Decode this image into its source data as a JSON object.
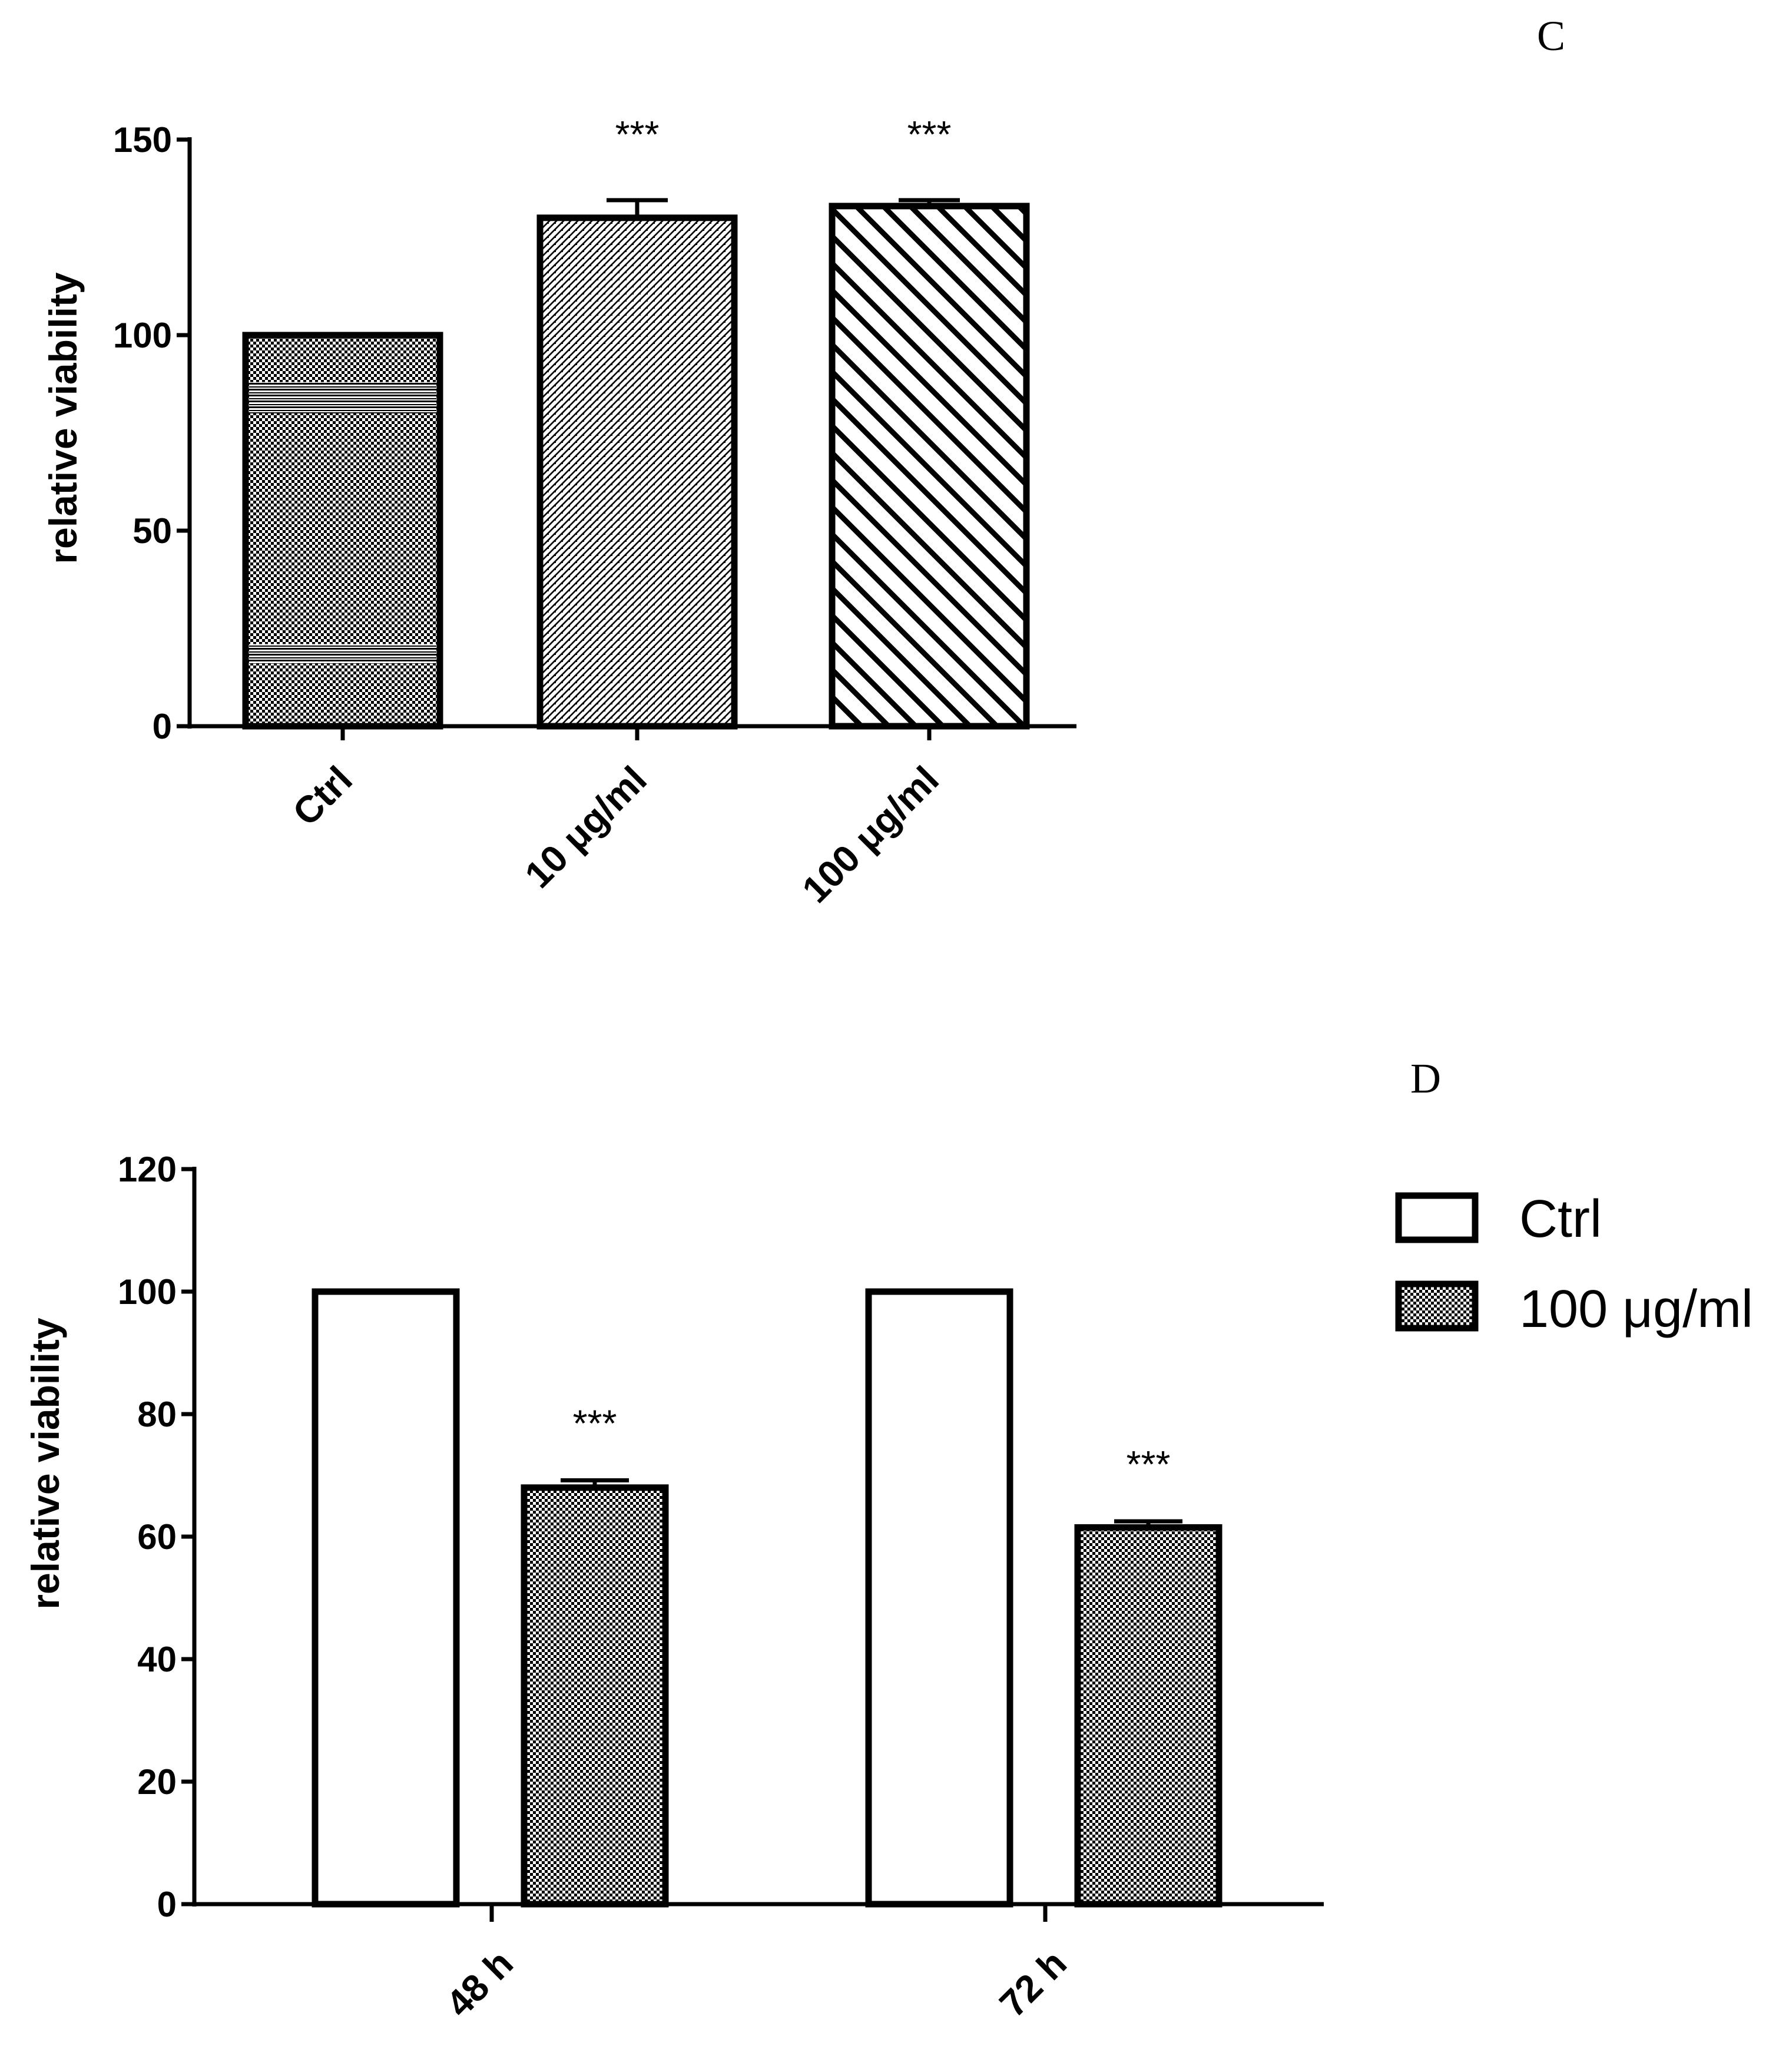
{
  "chart_data": [
    {
      "type": "bar",
      "panel": "C",
      "title": "",
      "xlabel": "",
      "ylabel": "relative viability",
      "ylim": [
        0,
        150
      ],
      "yticks": [
        0,
        50,
        100,
        150
      ],
      "categories": [
        "Ctrl",
        "10 μg/ml",
        "100 μg/ml"
      ],
      "values": [
        100,
        130,
        133
      ],
      "errors": [
        0,
        4.5,
        1.5
      ],
      "significance": [
        "",
        "***",
        "***"
      ],
      "patterns": [
        "checker-banded",
        "fine-hatch",
        "diagonal-hatch"
      ]
    },
    {
      "type": "bar",
      "panel": "D",
      "title": "",
      "xlabel": "",
      "ylabel": "relative viability",
      "ylim": [
        0,
        120
      ],
      "yticks": [
        0,
        20,
        40,
        60,
        80,
        100,
        120
      ],
      "categories": [
        "48 h",
        "72 h"
      ],
      "series": [
        {
          "name": "Ctrl",
          "values": [
            100,
            100
          ],
          "errors": [
            0,
            0
          ],
          "significance": [
            "",
            ""
          ],
          "pattern": "empty"
        },
        {
          "name": "100 μg/ml",
          "values": [
            68,
            61.5
          ],
          "errors": [
            1.2,
            1.0
          ],
          "significance": [
            "***",
            "***"
          ],
          "pattern": "checker"
        }
      ],
      "legend": {
        "position": "right",
        "entries": [
          "Ctrl",
          "100 μg/ml"
        ]
      }
    }
  ],
  "colors": {
    "ink": "#000000",
    "background": "#ffffff"
  }
}
